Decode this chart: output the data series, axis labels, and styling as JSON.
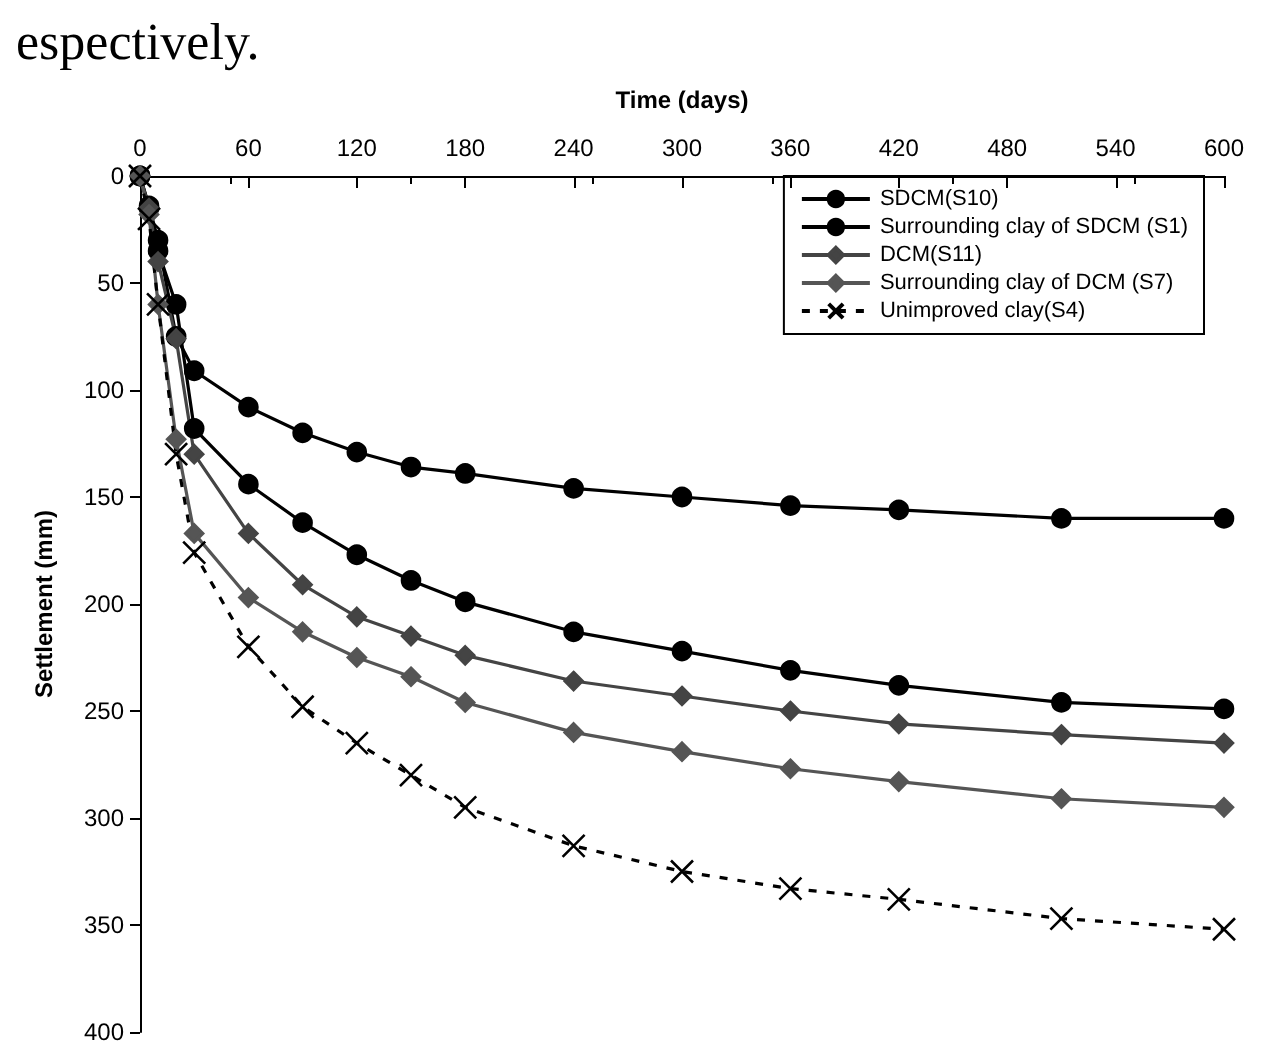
{
  "chart_data": {
    "type": "line",
    "xlabel": "Time (days)",
    "ylabel": "Settlement (mm)",
    "annotations": [
      "espectively."
    ],
    "x": [
      0,
      5,
      10,
      20,
      30,
      60,
      90,
      120,
      150,
      180,
      240,
      300,
      360,
      420,
      510,
      600
    ],
    "xlim": [
      0,
      600
    ],
    "xticks": [
      0,
      60,
      120,
      180,
      240,
      300,
      360,
      420,
      480,
      540,
      600
    ],
    "ylim": [
      400,
      0
    ],
    "yticks": [
      0,
      50,
      100,
      150,
      200,
      250,
      300,
      350,
      400
    ],
    "grid": false,
    "legend": "top right",
    "line_style": "solid",
    "series": [
      {
        "name": "SDCM(S10)",
        "color": "#000000",
        "marker": "circle",
        "values": [
          0,
          14,
          30,
          75,
          91,
          108,
          120,
          129,
          136,
          139,
          146,
          150,
          154,
          156,
          160,
          160
        ]
      },
      {
        "name": "Surrounding clay of SDCM (S1)",
        "color": "#000000",
        "marker": "circle",
        "values": [
          0,
          15,
          35,
          60,
          118,
          144,
          162,
          177,
          189,
          199,
          213,
          222,
          231,
          238,
          246,
          249
        ]
      },
      {
        "name": "DCM(S11)",
        "color": "#444444",
        "marker": "diamond",
        "values": [
          0,
          15,
          40,
          76,
          130,
          167,
          191,
          206,
          215,
          224,
          236,
          243,
          250,
          256,
          261,
          265
        ]
      },
      {
        "name": "Surrounding clay of DCM (S7)",
        "color": "#555555",
        "marker": "diamond",
        "values": [
          0,
          18,
          60,
          123,
          167,
          197,
          213,
          225,
          234,
          246,
          260,
          269,
          277,
          283,
          291,
          295
        ]
      },
      {
        "name": "Unimproved clay(S4)",
        "color": "#000000",
        "marker": "cross",
        "line_style": "dashed",
        "values": [
          0,
          20,
          60,
          130,
          176,
          220,
          248,
          265,
          280,
          295,
          313,
          325,
          333,
          338,
          347,
          352
        ]
      }
    ]
  }
}
